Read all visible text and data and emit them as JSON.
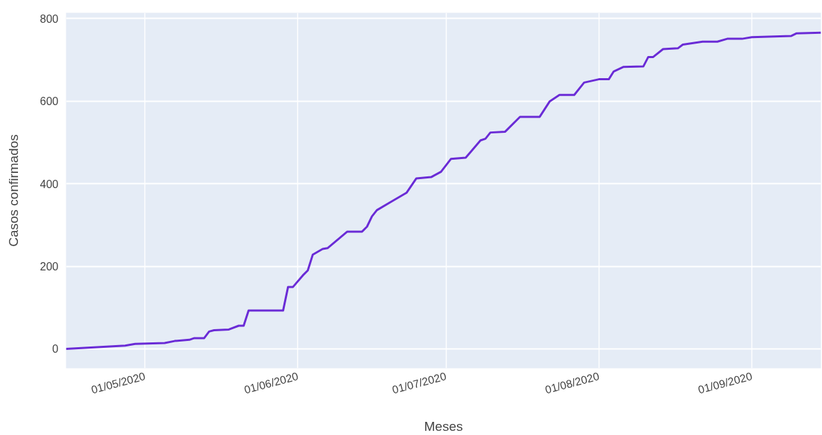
{
  "chart_data": {
    "type": "line",
    "xlabel": "Meses",
    "ylabel": "Casos confirmados",
    "x": [
      "2020-04-15",
      "2020-04-27",
      "2020-04-29",
      "2020-05-05",
      "2020-05-07",
      "2020-05-10",
      "2020-05-11",
      "2020-05-13",
      "2020-05-14",
      "2020-05-15",
      "2020-05-18",
      "2020-05-20",
      "2020-05-21",
      "2020-05-22",
      "2020-05-29",
      "2020-05-30",
      "2020-05-31",
      "2020-06-02",
      "2020-06-03",
      "2020-06-04",
      "2020-06-06",
      "2020-06-07",
      "2020-06-11",
      "2020-06-14",
      "2020-06-15",
      "2020-06-16",
      "2020-06-17",
      "2020-06-20",
      "2020-06-23",
      "2020-06-25",
      "2020-06-28",
      "2020-06-30",
      "2020-07-02",
      "2020-07-05",
      "2020-07-06",
      "2020-07-08",
      "2020-07-09",
      "2020-07-10",
      "2020-07-13",
      "2020-07-16",
      "2020-07-20",
      "2020-07-22",
      "2020-07-24",
      "2020-07-27",
      "2020-07-29",
      "2020-08-01",
      "2020-08-03",
      "2020-08-04",
      "2020-08-06",
      "2020-08-10",
      "2020-08-11",
      "2020-08-12",
      "2020-08-14",
      "2020-08-17",
      "2020-08-18",
      "2020-08-22",
      "2020-08-25",
      "2020-08-27",
      "2020-08-30",
      "2020-09-01",
      "2020-09-09",
      "2020-09-10",
      "2020-09-15"
    ],
    "series": [
      {
        "color": "#6a2bd6",
        "values": [
          0,
          8,
          12,
          14,
          19,
          22,
          26,
          26,
          42,
          45,
          47,
          56,
          56,
          93,
          93,
          150,
          150,
          178,
          190,
          228,
          242,
          244,
          284,
          284,
          296,
          321,
          336,
          357,
          378,
          413,
          416,
          429,
          460,
          463,
          477,
          505,
          509,
          524,
          526,
          562,
          562,
          599,
          615,
          615,
          645,
          653,
          653,
          672,
          683,
          684,
          707,
          707,
          726,
          728,
          737,
          744,
          744,
          751,
          751,
          755,
          758,
          764,
          766
        ]
      }
    ],
    "xlim": [
      "2020-04-15",
      "2020-09-15"
    ],
    "xticks": [
      {
        "value": "2020-05-01",
        "label": "01/05/2020"
      },
      {
        "value": "2020-06-01",
        "label": "01/06/2020"
      },
      {
        "value": "2020-07-01",
        "label": "01/07/2020"
      },
      {
        "value": "2020-08-01",
        "label": "01/08/2020"
      },
      {
        "value": "2020-09-01",
        "label": "01/09/2020"
      }
    ],
    "ylim": [
      -47,
      814
    ],
    "yticks": [
      0,
      200,
      400,
      600,
      800
    ],
    "grid": true,
    "line_style": "solid",
    "marker": "none"
  }
}
